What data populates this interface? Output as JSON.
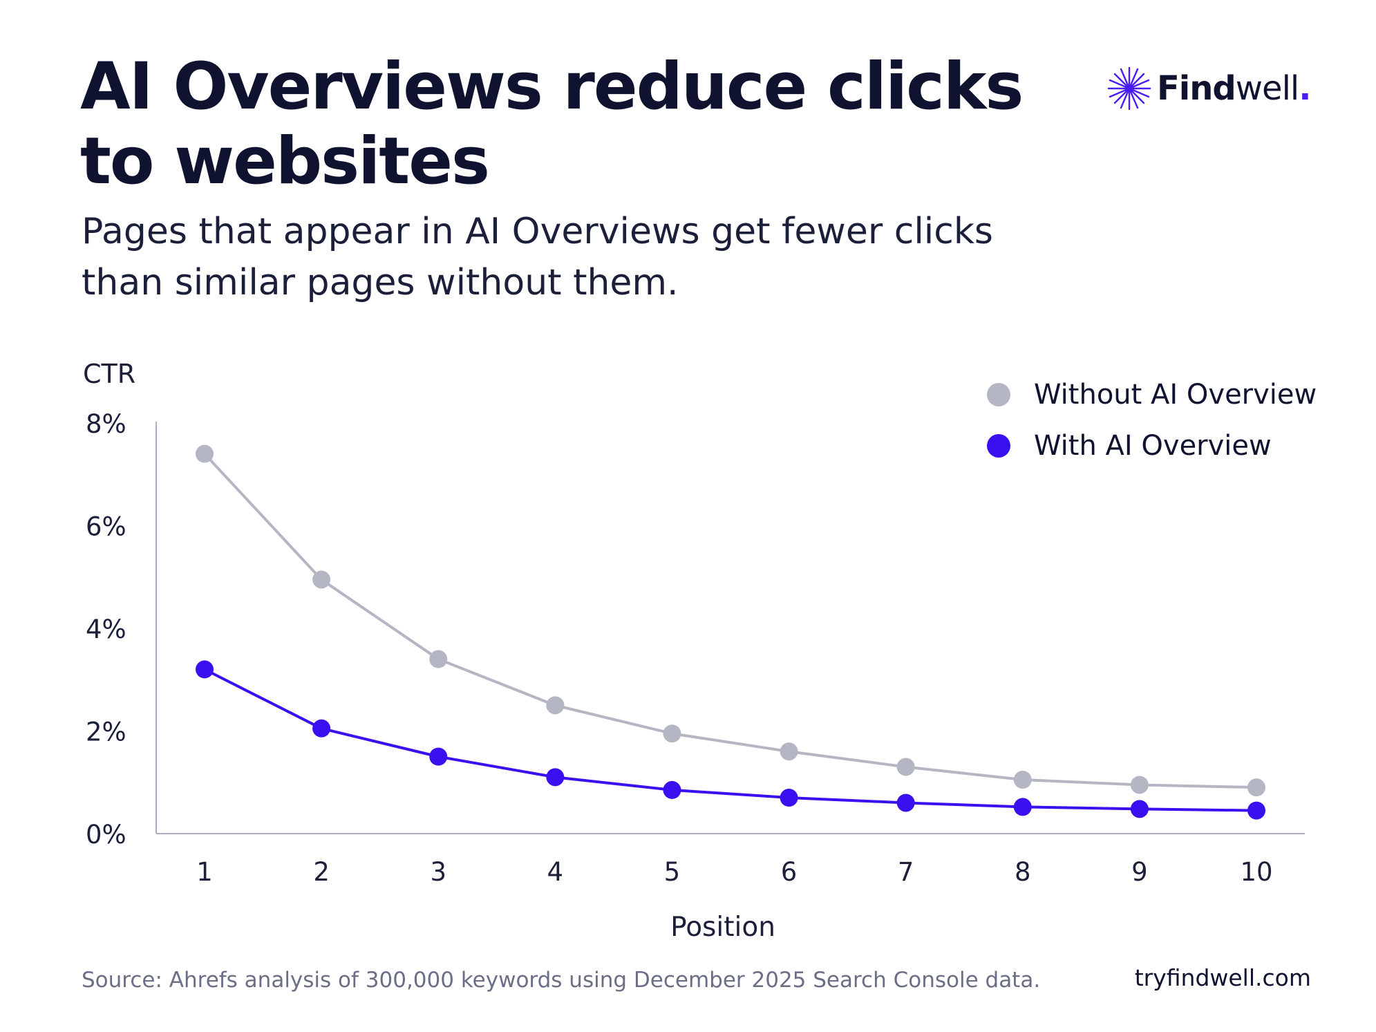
{
  "title": "AI Overviews reduce clicks to websites",
  "subtitle": "Pages that appear in AI Overviews get fewer clicks than similar pages without them.",
  "brand": {
    "name_bold": "Find",
    "name_rest": "well",
    "dot": ".",
    "icon": "sparkle-star-icon",
    "accent": "#4a1cf5"
  },
  "source": "Source: Ahrefs analysis of 300,000 keywords using December 2025 Search Console data.",
  "site": "tryfindwell.com",
  "chart_data": {
    "type": "line",
    "ylabel": "CTR",
    "xlabel": "Position",
    "x": [
      1,
      2,
      3,
      4,
      5,
      6,
      7,
      8,
      9,
      10
    ],
    "x_tick_labels": [
      "1",
      "2",
      "3",
      "4",
      "5",
      "6",
      "7",
      "8",
      "9",
      "10"
    ],
    "y_ticks": [
      0,
      2,
      4,
      6,
      8
    ],
    "y_tick_labels": [
      "0%",
      "2%",
      "4%",
      "6%",
      "8%"
    ],
    "ylim": [
      0,
      8
    ],
    "grid": false,
    "legend_position": "top-right",
    "series": [
      {
        "name": "Without AI Overview",
        "color": "#b4b6c4",
        "values": [
          7.4,
          4.95,
          3.4,
          2.5,
          1.95,
          1.6,
          1.3,
          1.05,
          0.95,
          0.9
        ]
      },
      {
        "name": "With AI Overview",
        "color": "#3a10f0",
        "values": [
          3.2,
          2.05,
          1.5,
          1.1,
          0.85,
          0.7,
          0.6,
          0.52,
          0.48,
          0.45
        ]
      }
    ]
  }
}
